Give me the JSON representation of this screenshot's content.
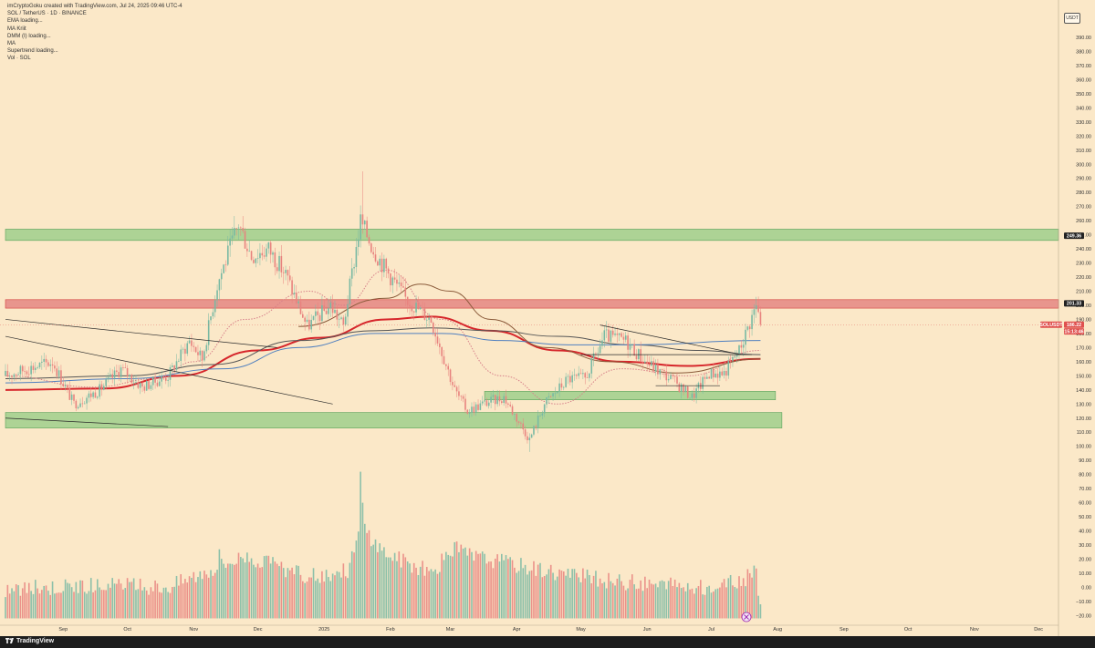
{
  "header": {
    "attribution": "imCryptoGoku created with TradingView.com, Jul 24, 2025 09:46 UTC-4",
    "indicators": [
      "SOL / TetherUS · 1D · BINANCE",
      "EMA loading...",
      "MA Kriit",
      "DMM (I) loading...",
      "MA",
      "Supertrend loading...",
      "Vol · SOL"
    ]
  },
  "axis": {
    "currency_label": "USDT"
  },
  "footer": {
    "brand": "TradingView"
  },
  "colors": {
    "background": "#fbe8c8",
    "up": "#78b9a3",
    "down": "#e8837f",
    "support_zone": "#9fcf8c",
    "resistance_zone": "#e27a7a",
    "ema": "#d6262b"
  },
  "chart_data": {
    "type": "candlestick",
    "symbol": "SOL / TetherUS",
    "timeframe": "1D",
    "exchange": "BINANCE",
    "y_scale": "linear",
    "price_ticks": [
      390,
      380,
      370,
      360,
      350,
      340,
      330,
      320,
      310,
      300,
      290,
      280,
      270,
      260,
      250,
      240,
      230,
      220,
      210,
      200,
      190,
      180,
      170,
      160,
      150,
      140,
      130,
      120,
      110,
      100,
      90,
      80,
      70,
      60,
      50,
      40,
      30,
      20,
      10,
      0,
      -10,
      -20
    ],
    "price_tick_labels": [
      "390.00",
      "380.00",
      "370.00",
      "360.00",
      "350.00",
      "340.00",
      "330.00",
      "320.00",
      "310.00",
      "300.00",
      "290.00",
      "280.00",
      "270.00",
      "260.00",
      "250.00",
      "240.00",
      "230.00",
      "220.00",
      "210.00",
      "200.00",
      "190.00",
      "180.00",
      "170.00",
      "160.00",
      "150.00",
      "140.00",
      "130.00",
      "120.00",
      "110.00",
      "100.00",
      "90.00",
      "80.00",
      "70.00",
      "60.00",
      "50.00",
      "40.00",
      "30.00",
      "20.00",
      "10.00",
      "0.00",
      "−10.00",
      "−20.00"
    ],
    "x_labels": [
      "Sep",
      "Oct",
      "Nov",
      "Dec",
      "2025",
      "Feb",
      "Mar",
      "Apr",
      "May",
      "Jun",
      "Jul",
      "Aug",
      "Sep",
      "Oct",
      "Nov",
      "Dec"
    ],
    "price_labels": [
      {
        "text": "249.36",
        "price": 249.36
      },
      {
        "text": "201.33",
        "price": 201.33
      },
      {
        "text": "SOLUSDT",
        "price": 186.22
      },
      {
        "text": "186.22",
        "price": 186.22
      },
      {
        "text": "15:13:46",
        "price": 186.22
      }
    ],
    "zones": [
      {
        "kind": "support",
        "from_price": 246,
        "to_price": 254,
        "start_date": "2024-08-05",
        "end_date": "2026-01-10"
      },
      {
        "kind": "resistance",
        "from_price": 198,
        "to_price": 204,
        "start_date": "2024-08-05",
        "end_date": "2026-01-10"
      },
      {
        "kind": "support",
        "from_price": 133,
        "to_price": 139,
        "start_date": "2025-03-17",
        "end_date": "2025-07-31"
      },
      {
        "kind": "support",
        "from_price": 113,
        "to_price": 124,
        "start_date": "2024-08-05",
        "end_date": "2025-08-03"
      }
    ],
    "waypoints": [
      [
        "2024-08-05",
        150
      ],
      [
        "2024-08-15",
        155
      ],
      [
        "2024-08-27",
        160
      ],
      [
        "2024-09-06",
        130
      ],
      [
        "2024-09-18",
        140
      ],
      [
        "2024-09-28",
        155
      ],
      [
        "2024-10-08",
        142
      ],
      [
        "2024-10-20",
        150
      ],
      [
        "2024-10-30",
        175
      ],
      [
        "2024-11-05",
        162
      ],
      [
        "2024-11-12",
        215
      ],
      [
        "2024-11-22",
        258
      ],
      [
        "2024-11-28",
        235
      ],
      [
        "2024-12-06",
        240
      ],
      [
        "2024-12-14",
        222
      ],
      [
        "2024-12-24",
        185
      ],
      [
        "2025-01-04",
        200
      ],
      [
        "2025-01-10",
        185
      ],
      [
        "2025-01-18",
        260
      ],
      [
        "2025-01-24",
        240
      ],
      [
        "2025-01-30",
        225
      ],
      [
        "2025-02-08",
        205
      ],
      [
        "2025-02-20",
        190
      ],
      [
        "2025-03-03",
        140
      ],
      [
        "2025-03-09",
        125
      ],
      [
        "2025-03-16",
        130
      ],
      [
        "2025-03-26",
        135
      ],
      [
        "2025-04-07",
        105
      ],
      [
        "2025-04-14",
        130
      ],
      [
        "2025-04-25",
        148
      ],
      [
        "2025-05-03",
        148
      ],
      [
        "2025-05-12",
        178
      ],
      [
        "2025-05-22",
        175
      ],
      [
        "2025-05-31",
        160
      ],
      [
        "2025-06-12",
        148
      ],
      [
        "2025-06-22",
        135
      ],
      [
        "2025-06-30",
        152
      ],
      [
        "2025-07-07",
        152
      ],
      [
        "2025-07-14",
        168
      ],
      [
        "2025-07-22",
        200
      ],
      [
        "2025-07-24",
        186.22
      ]
    ],
    "volume_waypoints": [
      [
        "2024-08-05",
        -4
      ],
      [
        "2024-09-10",
        -1
      ],
      [
        "2024-10-20",
        -2
      ],
      [
        "2024-11-12",
        12
      ],
      [
        "2024-11-25",
        20
      ],
      [
        "2024-12-24",
        5
      ],
      [
        "2025-01-12",
        10
      ],
      [
        "2025-01-18",
        38
      ],
      [
        "2025-01-30",
        22
      ],
      [
        "2025-02-20",
        8
      ],
      [
        "2025-03-03",
        25
      ],
      [
        "2025-03-11",
        20
      ],
      [
        "2025-04-07",
        12
      ],
      [
        "2025-05-10",
        3
      ],
      [
        "2025-06-10",
        -1
      ],
      [
        "2025-07-01",
        -3
      ],
      [
        "2025-07-14",
        2
      ],
      [
        "2025-07-22",
        8
      ],
      [
        "2025-07-24",
        -15
      ]
    ],
    "volume_spikes": [
      [
        "2025-01-18",
        82
      ],
      [
        "2025-01-19",
        60
      ],
      [
        "2025-01-20",
        45
      ],
      [
        "2025-03-03",
        32
      ],
      [
        "2025-03-11",
        25
      ],
      [
        "2024-11-13",
        27
      ]
    ],
    "moving_averages": [
      {
        "id": "ema_red",
        "color": "#d6262b",
        "width": 2,
        "points": [
          [
            "2024-08-05",
            140
          ],
          [
            "2024-09-20",
            141
          ],
          [
            "2024-10-25",
            150
          ],
          [
            "2024-12-01",
            168
          ],
          [
            "2024-12-30",
            177
          ],
          [
            "2025-01-30",
            190
          ],
          [
            "2025-02-20",
            192
          ],
          [
            "2025-03-20",
            182
          ],
          [
            "2025-04-20",
            168
          ],
          [
            "2025-05-20",
            160
          ],
          [
            "2025-06-20",
            157
          ],
          [
            "2025-07-24",
            162
          ]
        ]
      },
      {
        "id": "ma_dark",
        "color": "#555555",
        "width": 1,
        "points": [
          [
            "2024-08-05",
            148
          ],
          [
            "2024-10-01",
            150
          ],
          [
            "2024-11-10",
            158
          ],
          [
            "2024-12-20",
            175
          ],
          [
            "2025-01-25",
            182
          ],
          [
            "2025-02-20",
            184
          ],
          [
            "2025-03-20",
            182
          ],
          [
            "2025-04-20",
            178
          ],
          [
            "2025-05-25",
            172
          ],
          [
            "2025-06-25",
            168
          ],
          [
            "2025-07-24",
            165
          ]
        ]
      },
      {
        "id": "ma_blue",
        "color": "#4f7fbf",
        "width": 1,
        "points": [
          [
            "2024-08-05",
            145
          ],
          [
            "2024-10-01",
            148
          ],
          [
            "2024-11-15",
            155
          ],
          [
            "2024-12-20",
            170
          ],
          [
            "2025-01-25",
            180
          ],
          [
            "2025-02-25",
            180
          ],
          [
            "2025-03-25",
            175
          ],
          [
            "2025-04-25",
            172
          ],
          [
            "2025-05-25",
            172
          ],
          [
            "2025-07-24",
            175
          ]
        ]
      },
      {
        "id": "ma_pink",
        "color": "#d7808a",
        "width": 1,
        "points": [
          [
            "2024-08-05",
            150
          ],
          [
            "2024-09-15",
            142
          ],
          [
            "2024-10-15",
            148
          ],
          [
            "2024-11-01",
            160
          ],
          [
            "2024-11-25",
            190
          ],
          [
            "2024-12-25",
            210
          ],
          [
            "2025-01-10",
            200
          ],
          [
            "2025-01-30",
            225
          ],
          [
            "2025-02-25",
            190
          ],
          [
            "2025-03-25",
            150
          ],
          [
            "2025-04-20",
            130
          ],
          [
            "2025-05-20",
            155
          ],
          [
            "2025-06-20",
            150
          ],
          [
            "2025-07-24",
            168
          ]
        ]
      },
      {
        "id": "ma_brown",
        "color": "#8a5a3a",
        "width": 1,
        "points": [
          [
            "2024-12-20",
            185
          ],
          [
            "2025-01-30",
            205
          ],
          [
            "2025-02-15",
            215
          ],
          [
            "2025-03-01",
            210
          ],
          [
            "2025-03-20",
            190
          ],
          [
            "2025-04-15",
            170
          ],
          [
            "2025-05-15",
            160
          ],
          [
            "2025-06-15",
            152
          ],
          [
            "2025-07-24",
            162
          ]
        ]
      }
    ],
    "trend_lines": [
      {
        "from": [
          "2024-08-05",
          190
        ],
        "to": [
          "2024-12-10",
          170
        ]
      },
      {
        "from": [
          "2024-08-05",
          178
        ],
        "to": [
          "2025-01-05",
          130
        ]
      },
      {
        "from": [
          "2024-08-05",
          120
        ],
        "to": [
          "2024-10-20",
          114
        ]
      },
      {
        "from": [
          "2025-05-10",
          186
        ],
        "to": [
          "2025-07-15",
          165
        ]
      },
      {
        "from": [
          "2025-05-01",
          165
        ],
        "to": [
          "2025-07-20",
          165
        ]
      },
      {
        "from": [
          "2025-06-05",
          143
        ],
        "to": [
          "2025-07-05",
          143
        ]
      }
    ]
  }
}
